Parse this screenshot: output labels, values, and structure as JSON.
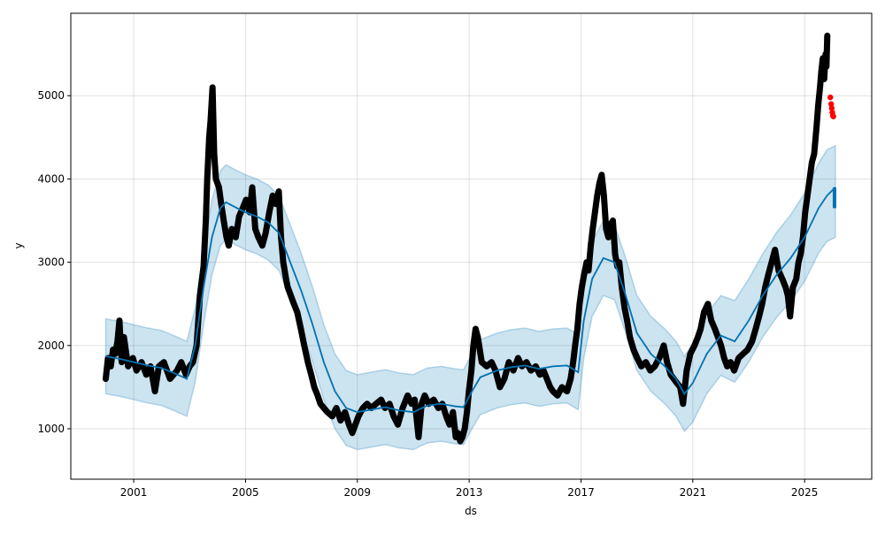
{
  "chart_data": {
    "type": "scatter",
    "title": "",
    "xlabel": "ds",
    "ylabel": "y",
    "xlim": [
      1998.75,
      2027.4
    ],
    "ylim": [
      395,
      5990
    ],
    "grid": true,
    "x_ticks": [
      {
        "value": 2001,
        "label": "2001"
      },
      {
        "value": 2005,
        "label": "2005"
      },
      {
        "value": 2009,
        "label": "2009"
      },
      {
        "value": 2013,
        "label": "2013"
      },
      {
        "value": 2017,
        "label": "2017"
      },
      {
        "value": 2021,
        "label": "2021"
      },
      {
        "value": 2025,
        "label": "2025"
      }
    ],
    "y_ticks": [
      {
        "value": 1000,
        "label": "1000"
      },
      {
        "value": 2000,
        "label": "2000"
      },
      {
        "value": 3000,
        "label": "3000"
      },
      {
        "value": 4000,
        "label": "4000"
      },
      {
        "value": 5000,
        "label": "5000"
      }
    ],
    "colors": {
      "observed": "#000000",
      "highlight": "#ff0000",
      "forecast": "#0072b2",
      "interval": "#0072b2"
    },
    "forecast": [
      [
        2000.0,
        1870,
        1420,
        2320
      ],
      [
        2000.5,
        1840,
        1390,
        2290
      ],
      [
        2001.0,
        1800,
        1350,
        2250
      ],
      [
        2001.5,
        1760,
        1310,
        2210
      ],
      [
        2002.0,
        1730,
        1280,
        2180
      ],
      [
        2002.5,
        1660,
        1210,
        2110
      ],
      [
        2002.9,
        1600,
        1150,
        2050
      ],
      [
        2003.2,
        2000,
        1560,
        2450
      ],
      [
        2003.5,
        2700,
        2250,
        3150
      ],
      [
        2003.8,
        3300,
        2850,
        3750
      ],
      [
        2004.1,
        3650,
        3200,
        4100
      ],
      [
        2004.3,
        3720,
        3270,
        4170
      ],
      [
        2004.7,
        3650,
        3200,
        4100
      ],
      [
        2005.0,
        3600,
        3150,
        4050
      ],
      [
        2005.4,
        3550,
        3100,
        4000
      ],
      [
        2005.8,
        3480,
        3030,
        3930
      ],
      [
        2006.2,
        3350,
        2900,
        3800
      ],
      [
        2006.6,
        3000,
        2550,
        3450
      ],
      [
        2007.0,
        2650,
        2200,
        3100
      ],
      [
        2007.4,
        2250,
        1800,
        2700
      ],
      [
        2007.8,
        1800,
        1350,
        2250
      ],
      [
        2008.2,
        1450,
        1000,
        1900
      ],
      [
        2008.6,
        1250,
        800,
        1700
      ],
      [
        2009.0,
        1200,
        750,
        1650
      ],
      [
        2009.5,
        1230,
        780,
        1680
      ],
      [
        2010.0,
        1260,
        810,
        1710
      ],
      [
        2010.5,
        1220,
        770,
        1670
      ],
      [
        2011.0,
        1200,
        750,
        1650
      ],
      [
        2011.5,
        1280,
        830,
        1730
      ],
      [
        2012.0,
        1300,
        850,
        1750
      ],
      [
        2012.5,
        1270,
        820,
        1720
      ],
      [
        2012.8,
        1260,
        810,
        1710
      ],
      [
        2013.1,
        1450,
        1000,
        1900
      ],
      [
        2013.4,
        1620,
        1170,
        2070
      ],
      [
        2014.0,
        1700,
        1250,
        2150
      ],
      [
        2014.5,
        1740,
        1290,
        2190
      ],
      [
        2015.0,
        1760,
        1310,
        2210
      ],
      [
        2015.5,
        1720,
        1270,
        2170
      ],
      [
        2016.0,
        1750,
        1300,
        2200
      ],
      [
        2016.5,
        1760,
        1310,
        2210
      ],
      [
        2016.9,
        1680,
        1230,
        2130
      ],
      [
        2017.1,
        2300,
        1850,
        2750
      ],
      [
        2017.4,
        2800,
        2350,
        3250
      ],
      [
        2017.8,
        3050,
        2600,
        3500
      ],
      [
        2018.2,
        3000,
        2550,
        3450
      ],
      [
        2018.6,
        2600,
        2150,
        3050
      ],
      [
        2019.0,
        2150,
        1700,
        2600
      ],
      [
        2019.5,
        1900,
        1450,
        2350
      ],
      [
        2020.0,
        1750,
        1300,
        2200
      ],
      [
        2020.4,
        1600,
        1150,
        2050
      ],
      [
        2020.7,
        1420,
        970,
        1870
      ],
      [
        2021.0,
        1550,
        1080,
        2020
      ],
      [
        2021.5,
        1900,
        1420,
        2380
      ],
      [
        2022.0,
        2120,
        1640,
        2600
      ],
      [
        2022.5,
        2050,
        1560,
        2540
      ],
      [
        2023.0,
        2300,
        1800,
        2800
      ],
      [
        2023.5,
        2600,
        2100,
        3100
      ],
      [
        2024.0,
        2850,
        2340,
        3360
      ],
      [
        2024.5,
        3050,
        2530,
        3570
      ],
      [
        2025.0,
        3300,
        2770,
        3830
      ],
      [
        2025.5,
        3650,
        3110,
        4190
      ],
      [
        2025.8,
        3800,
        3250,
        4350
      ],
      [
        2026.1,
        3900,
        3300,
        4400
      ]
    ],
    "observed": [
      [
        2000.0,
        1600
      ],
      [
        2000.08,
        1850
      ],
      [
        2000.18,
        1750
      ],
      [
        2000.26,
        1950
      ],
      [
        2000.34,
        1900
      ],
      [
        2000.42,
        2050
      ],
      [
        2000.49,
        2300
      ],
      [
        2000.57,
        1800
      ],
      [
        2000.65,
        2100
      ],
      [
        2000.8,
        1750
      ],
      [
        2000.97,
        1850
      ],
      [
        2001.1,
        1700
      ],
      [
        2001.28,
        1800
      ],
      [
        2001.45,
        1650
      ],
      [
        2001.6,
        1750
      ],
      [
        2001.76,
        1450
      ],
      [
        2001.9,
        1750
      ],
      [
        2002.08,
        1800
      ],
      [
        2002.3,
        1600
      ],
      [
        2002.55,
        1700
      ],
      [
        2002.7,
        1800
      ],
      [
        2002.87,
        1650
      ],
      [
        2003.0,
        1750
      ],
      [
        2003.12,
        1800
      ],
      [
        2003.25,
        2000
      ],
      [
        2003.37,
        2600
      ],
      [
        2003.5,
        2950
      ],
      [
        2003.58,
        3500
      ],
      [
        2003.63,
        4000
      ],
      [
        2003.7,
        4500
      ],
      [
        2003.75,
        4700
      ],
      [
        2003.82,
        5100
      ],
      [
        2003.88,
        4300
      ],
      [
        2003.94,
        4000
      ],
      [
        2004.05,
        3900
      ],
      [
        2004.13,
        3700
      ],
      [
        2004.22,
        3500
      ],
      [
        2004.32,
        3300
      ],
      [
        2004.4,
        3200
      ],
      [
        2004.51,
        3400
      ],
      [
        2004.65,
        3300
      ],
      [
        2004.77,
        3550
      ],
      [
        2004.9,
        3650
      ],
      [
        2005.02,
        3750
      ],
      [
        2005.15,
        3600
      ],
      [
        2005.24,
        3900
      ],
      [
        2005.35,
        3400
      ],
      [
        2005.46,
        3300
      ],
      [
        2005.6,
        3200
      ],
      [
        2005.72,
        3350
      ],
      [
        2005.85,
        3600
      ],
      [
        2005.97,
        3800
      ],
      [
        2006.08,
        3700
      ],
      [
        2006.19,
        3850
      ],
      [
        2006.27,
        3300
      ],
      [
        2006.35,
        3000
      ],
      [
        2006.45,
        2800
      ],
      [
        2006.51,
        2700
      ],
      [
        2006.62,
        2600
      ],
      [
        2006.73,
        2500
      ],
      [
        2006.85,
        2400
      ],
      [
        2006.98,
        2200
      ],
      [
        2007.1,
        2000
      ],
      [
        2007.23,
        1800
      ],
      [
        2007.35,
        1650
      ],
      [
        2007.46,
        1500
      ],
      [
        2007.58,
        1400
      ],
      [
        2007.68,
        1300
      ],
      [
        2007.8,
        1250
      ],
      [
        2007.93,
        1200
      ],
      [
        2008.1,
        1150
      ],
      [
        2008.25,
        1250
      ],
      [
        2008.4,
        1100
      ],
      [
        2008.56,
        1200
      ],
      [
        2008.7,
        1050
      ],
      [
        2008.82,
        950
      ],
      [
        2009.04,
        1150
      ],
      [
        2009.2,
        1250
      ],
      [
        2009.35,
        1300
      ],
      [
        2009.5,
        1250
      ],
      [
        2009.67,
        1300
      ],
      [
        2009.85,
        1350
      ],
      [
        2009.99,
        1250
      ],
      [
        2010.15,
        1300
      ],
      [
        2010.3,
        1150
      ],
      [
        2010.45,
        1050
      ],
      [
        2010.62,
        1250
      ],
      [
        2010.8,
        1400
      ],
      [
        2010.94,
        1300
      ],
      [
        2011.05,
        1350
      ],
      [
        2011.19,
        900
      ],
      [
        2011.3,
        1300
      ],
      [
        2011.41,
        1400
      ],
      [
        2011.55,
        1300
      ],
      [
        2011.73,
        1350
      ],
      [
        2011.9,
        1250
      ],
      [
        2012.04,
        1300
      ],
      [
        2012.18,
        1150
      ],
      [
        2012.3,
        1050
      ],
      [
        2012.42,
        1200
      ],
      [
        2012.52,
        900
      ],
      [
        2012.6,
        950
      ],
      [
        2012.68,
        850
      ],
      [
        2012.76,
        900
      ],
      [
        2012.84,
        1000
      ],
      [
        2012.92,
        1200
      ],
      [
        2012.99,
        1450
      ],
      [
        2013.08,
        1700
      ],
      [
        2013.15,
        2000
      ],
      [
        2013.23,
        2200
      ],
      [
        2013.31,
        2100
      ],
      [
        2013.45,
        1800
      ],
      [
        2013.63,
        1750
      ],
      [
        2013.8,
        1800
      ],
      [
        2013.94,
        1700
      ],
      [
        2014.1,
        1500
      ],
      [
        2014.26,
        1600
      ],
      [
        2014.42,
        1800
      ],
      [
        2014.58,
        1700
      ],
      [
        2014.75,
        1850
      ],
      [
        2014.89,
        1750
      ],
      [
        2015.05,
        1800
      ],
      [
        2015.21,
        1700
      ],
      [
        2015.38,
        1750
      ],
      [
        2015.53,
        1650
      ],
      [
        2015.66,
        1700
      ],
      [
        2015.78,
        1600
      ],
      [
        2015.9,
        1500
      ],
      [
        2016.0,
        1450
      ],
      [
        2016.16,
        1400
      ],
      [
        2016.32,
        1500
      ],
      [
        2016.5,
        1450
      ],
      [
        2016.63,
        1600
      ],
      [
        2016.72,
        1800
      ],
      [
        2016.79,
        2000
      ],
      [
        2016.87,
        2200
      ],
      [
        2016.95,
        2500
      ],
      [
        2017.03,
        2700
      ],
      [
        2017.11,
        2850
      ],
      [
        2017.2,
        3000
      ],
      [
        2017.27,
        2900
      ],
      [
        2017.35,
        3200
      ],
      [
        2017.42,
        3400
      ],
      [
        2017.5,
        3600
      ],
      [
        2017.58,
        3800
      ],
      [
        2017.66,
        3950
      ],
      [
        2017.74,
        4050
      ],
      [
        2017.82,
        3800
      ],
      [
        2017.9,
        3400
      ],
      [
        2017.98,
        3300
      ],
      [
        2018.06,
        3450
      ],
      [
        2018.14,
        3500
      ],
      [
        2018.22,
        3100
      ],
      [
        2018.3,
        2950
      ],
      [
        2018.37,
        3000
      ],
      [
        2018.46,
        2700
      ],
      [
        2018.56,
        2450
      ],
      [
        2018.65,
        2300
      ],
      [
        2018.75,
        2100
      ],
      [
        2018.88,
        1950
      ],
      [
        2019.01,
        1850
      ],
      [
        2019.16,
        1750
      ],
      [
        2019.32,
        1800
      ],
      [
        2019.48,
        1700
      ],
      [
        2019.64,
        1750
      ],
      [
        2019.8,
        1850
      ],
      [
        2019.96,
        2000
      ],
      [
        2020.08,
        1800
      ],
      [
        2020.21,
        1650
      ],
      [
        2020.32,
        1600
      ],
      [
        2020.43,
        1550
      ],
      [
        2020.55,
        1500
      ],
      [
        2020.65,
        1300
      ],
      [
        2020.78,
        1700
      ],
      [
        2020.91,
        1900
      ],
      [
        2021.06,
        2000
      ],
      [
        2021.18,
        2100
      ],
      [
        2021.28,
        2200
      ],
      [
        2021.4,
        2400
      ],
      [
        2021.54,
        2500
      ],
      [
        2021.66,
        2300
      ],
      [
        2021.79,
        2200
      ],
      [
        2021.9,
        2100
      ],
      [
        2022.01,
        2000
      ],
      [
        2022.12,
        1850
      ],
      [
        2022.23,
        1750
      ],
      [
        2022.35,
        1800
      ],
      [
        2022.48,
        1700
      ],
      [
        2022.64,
        1850
      ],
      [
        2022.8,
        1900
      ],
      [
        2022.96,
        1950
      ],
      [
        2023.12,
        2050
      ],
      [
        2023.25,
        2200
      ],
      [
        2023.37,
        2350
      ],
      [
        2023.48,
        2500
      ],
      [
        2023.59,
        2700
      ],
      [
        2023.7,
        2850
      ],
      [
        2023.82,
        3000
      ],
      [
        2023.94,
        3150
      ],
      [
        2024.07,
        2900
      ],
      [
        2024.2,
        2800
      ],
      [
        2024.32,
        2700
      ],
      [
        2024.4,
        2600
      ],
      [
        2024.48,
        2350
      ],
      [
        2024.58,
        2700
      ],
      [
        2024.7,
        2800
      ],
      [
        2024.78,
        3000
      ],
      [
        2024.86,
        3100
      ],
      [
        2024.94,
        3300
      ],
      [
        2025.02,
        3600
      ],
      [
        2025.1,
        3800
      ],
      [
        2025.18,
        4000
      ],
      [
        2025.26,
        4200
      ],
      [
        2025.34,
        4300
      ],
      [
        2025.42,
        4600
      ],
      [
        2025.49,
        4900
      ],
      [
        2025.55,
        5100
      ],
      [
        2025.6,
        5300
      ],
      [
        2025.65,
        5450
      ],
      [
        2025.7,
        5200
      ],
      [
        2025.75,
        5500
      ],
      [
        2025.78,
        5350
      ],
      [
        2025.81,
        5720
      ]
    ],
    "highlighted": [
      [
        2025.92,
        4980
      ],
      [
        2025.95,
        4900
      ],
      [
        2025.97,
        4850
      ],
      [
        2025.99,
        4800
      ],
      [
        2026.01,
        4760
      ],
      [
        2026.03,
        4750
      ]
    ]
  }
}
